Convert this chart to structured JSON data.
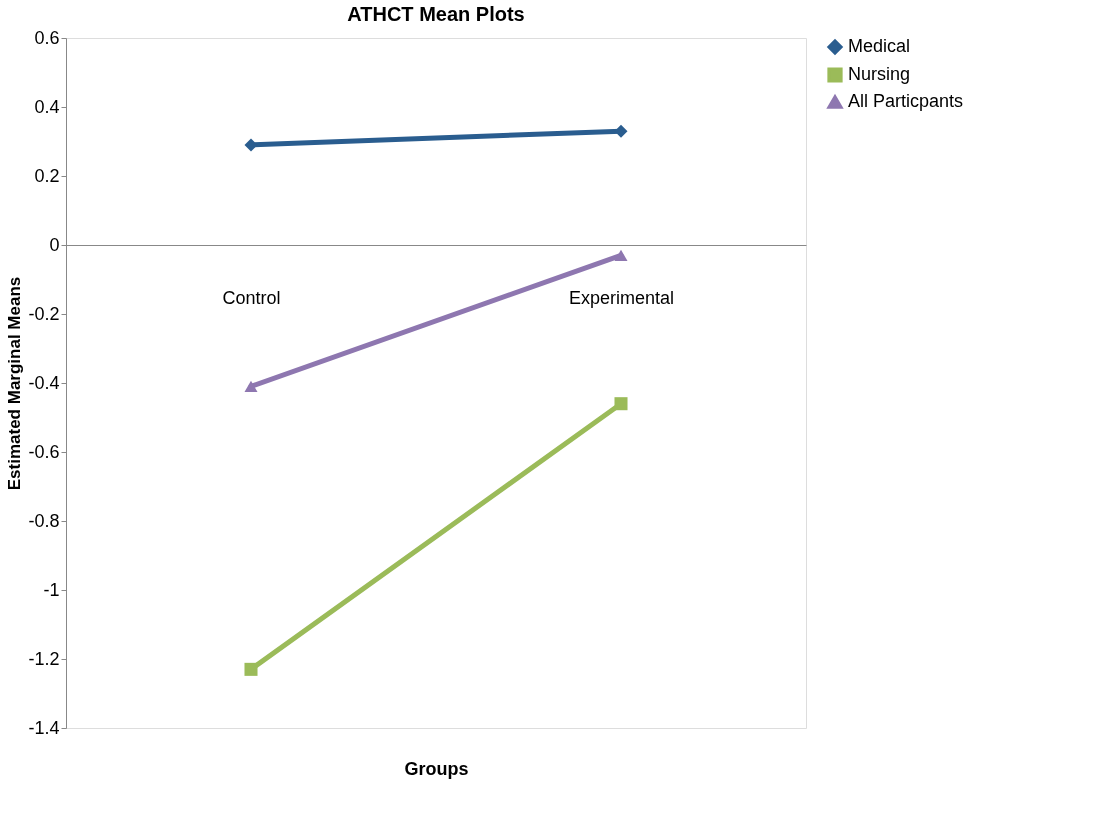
{
  "chart_data": {
    "type": "line",
    "title": "ATHCT Mean Plots",
    "xlabel": "Groups",
    "ylabel": "Estimated Marginal Means",
    "categories": [
      "Control",
      "Experimental"
    ],
    "series": [
      {
        "name": "Medical",
        "color": "#2a5d8f",
        "values": [
          0.29,
          0.33
        ],
        "marker": "diamond"
      },
      {
        "name": "Nursing",
        "color": "#9bbb59",
        "values": [
          -1.23,
          -0.46
        ],
        "marker": "square"
      },
      {
        "name": "All Particpants",
        "color": "#8e77b0",
        "values": [
          -0.41,
          -0.03
        ],
        "marker": "triangle"
      }
    ],
    "ylim": [
      -1.4,
      0.6
    ],
    "yticks": [
      -1.4,
      -1.2,
      -1,
      -0.8,
      -0.6,
      -0.4,
      -0.2,
      0,
      0.2,
      0.4,
      0.6
    ],
    "grid": false,
    "legend": "right",
    "line_style": "solid"
  }
}
